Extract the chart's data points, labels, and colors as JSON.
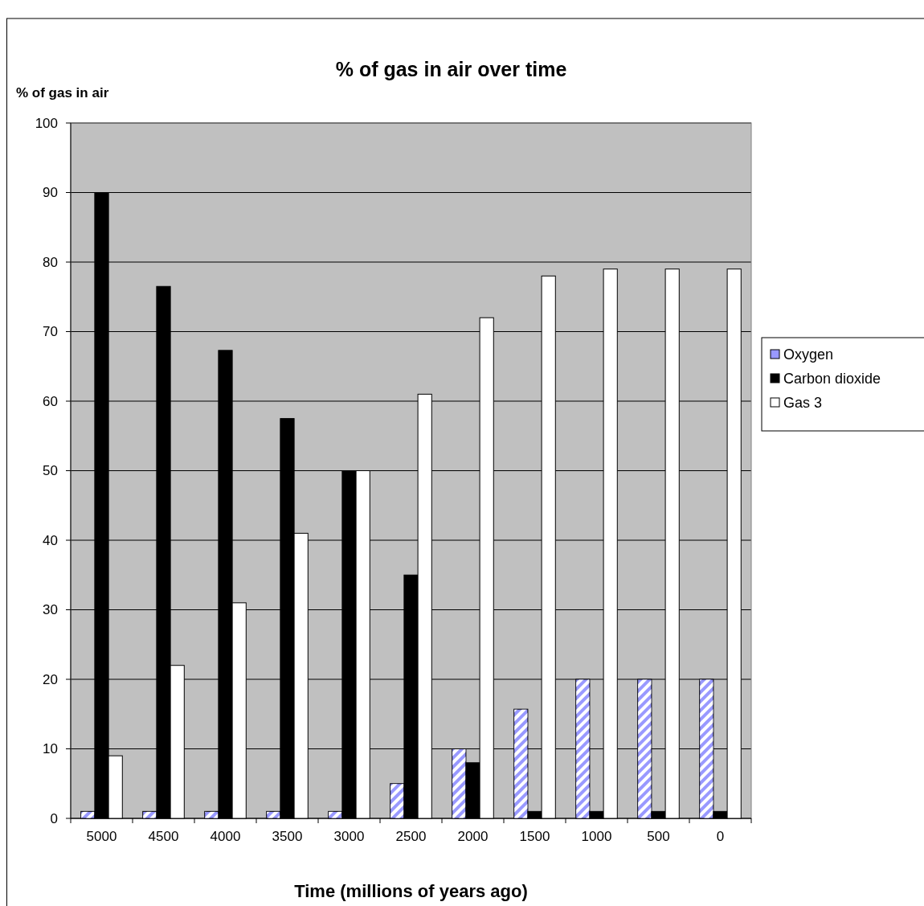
{
  "chart_data": {
    "type": "bar",
    "title": "% of gas in air over time",
    "ylabel": "% of gas in air",
    "xlabel": "Time (millions of years ago)",
    "categories": [
      "5000",
      "4500",
      "4000",
      "3500",
      "3000",
      "2500",
      "2000",
      "1500",
      "1000",
      "500",
      "0"
    ],
    "series": [
      {
        "name": "Oxygen",
        "color": "#9999ff",
        "values": [
          1,
          1,
          1,
          1,
          1,
          5,
          10,
          15.7,
          20,
          20,
          20
        ]
      },
      {
        "name": "Carbon dioxide",
        "color": "#000000",
        "values": [
          90,
          76.5,
          67.3,
          57.5,
          50,
          35,
          8,
          1,
          1,
          1,
          1
        ]
      },
      {
        "name": "Gas 3",
        "color": "#ffffff",
        "values": [
          9,
          22,
          31,
          41,
          50,
          61,
          72,
          78,
          79,
          79,
          79
        ]
      }
    ],
    "ylim": [
      0,
      100
    ],
    "yticks": [
      0,
      10,
      20,
      30,
      40,
      50,
      60,
      70,
      80,
      90,
      100
    ],
    "grid": "y",
    "legend": "right"
  }
}
